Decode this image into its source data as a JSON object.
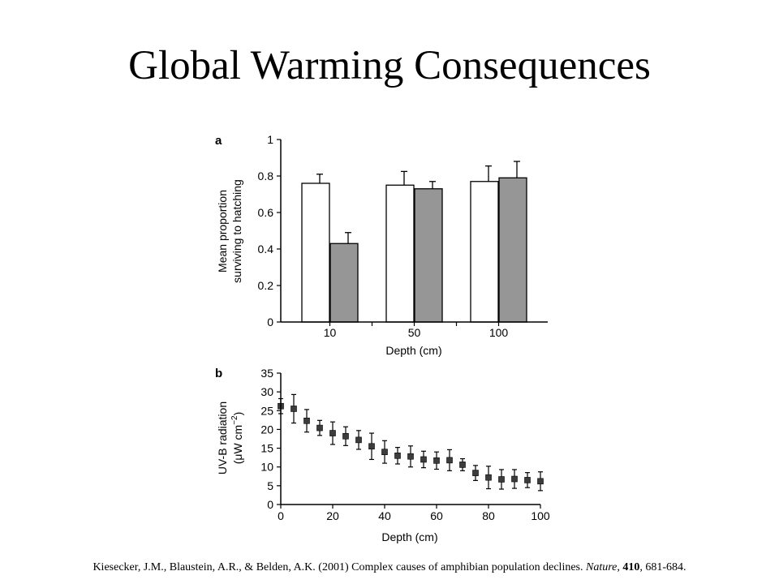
{
  "slide": {
    "title": "Global Warming Consequences",
    "citation": {
      "authors_year_title": "Kiesecker, J.M., Blaustein, A.R., & Belden, A.K. (2001) Complex causes of amphibian population declines. ",
      "journal": "Nature",
      "sep1": ", ",
      "volume": "410",
      "pages": ", 681-684."
    }
  },
  "colors": {
    "bar_open": "#ffffff",
    "bar_filled": "#969696",
    "marker": "#3c3c3c",
    "axis": "#000000"
  },
  "chart_data": [
    {
      "panel_label": "a",
      "type": "bar",
      "categories": [
        "10",
        "50",
        "100"
      ],
      "series": [
        {
          "values": [
            0.76,
            0.75,
            0.77
          ],
          "errors": [
            0.05,
            0.075,
            0.085
          ],
          "fill": "open"
        },
        {
          "values": [
            0.43,
            0.73,
            0.79
          ],
          "errors": [
            0.06,
            0.04,
            0.09
          ],
          "fill": "grey"
        }
      ],
      "xlabel": "Depth (cm)",
      "ylabel_line1": "Mean proportion",
      "ylabel_line2": "surviving to hatching",
      "ylim": [
        0,
        1
      ],
      "yticks": [
        0,
        0.2,
        0.4,
        0.6,
        0.8,
        1
      ],
      "ytick_labels": [
        "0",
        "0.2",
        "0.4",
        "0.6",
        "0.8",
        "1"
      ],
      "grid": false
    },
    {
      "panel_label": "b",
      "type": "scatter",
      "x": [
        0,
        5,
        10,
        15,
        20,
        25,
        30,
        35,
        40,
        45,
        50,
        55,
        60,
        65,
        70,
        75,
        80,
        85,
        90,
        95,
        100
      ],
      "y": [
        26.2,
        25.5,
        22.3,
        20.4,
        19.0,
        18.2,
        17.2,
        15.5,
        14.0,
        13.0,
        12.8,
        12.0,
        11.7,
        11.8,
        10.6,
        8.4,
        7.2,
        6.7,
        6.8,
        6.5,
        6.2
      ],
      "yerr": [
        2.0,
        3.8,
        3.0,
        2.0,
        3.0,
        2.5,
        2.5,
        3.5,
        3.0,
        2.2,
        2.8,
        2.2,
        2.3,
        2.8,
        1.6,
        2.0,
        3.0,
        2.6,
        2.5,
        2.0,
        2.5
      ],
      "xlabel": "Depth (cm)",
      "ylabel_line1": "UV-B radiation",
      "ylabel_line2_prefix": "(μW cm",
      "ylabel_line2_sup": "−2",
      "ylabel_line2_suffix": ")",
      "xlim": [
        0,
        100
      ],
      "ylim": [
        0,
        35
      ],
      "xticks": [
        0,
        20,
        40,
        60,
        80,
        100
      ],
      "xtick_labels": [
        "0",
        "20",
        "40",
        "60",
        "80",
        "100"
      ],
      "yticks": [
        0,
        5,
        10,
        15,
        20,
        25,
        30,
        35
      ],
      "ytick_labels": [
        "0",
        "5",
        "10",
        "15",
        "20",
        "25",
        "30",
        "35"
      ],
      "grid": false
    }
  ]
}
